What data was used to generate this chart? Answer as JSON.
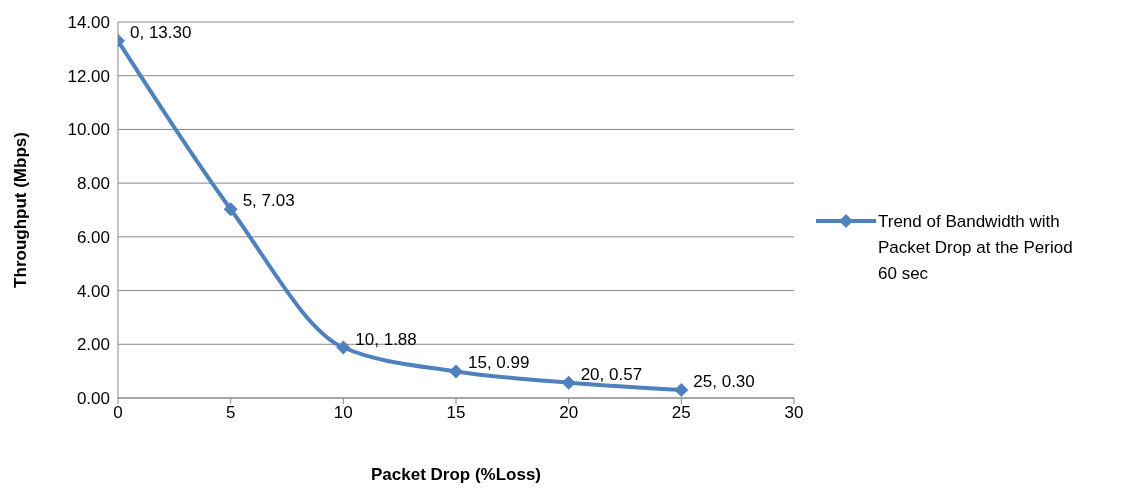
{
  "chart_data": {
    "type": "line",
    "xlabel": "Packet Drop (%Loss)",
    "ylabel": "Throughput (Mbps)",
    "x": [
      0,
      5,
      10,
      15,
      20,
      25
    ],
    "series": [
      {
        "name": "Trend of Bandwidth with Packet Drop at the Period 60 sec",
        "color": "#4f81bd",
        "values": [
          13.3,
          7.03,
          1.88,
          0.99,
          0.57,
          0.3
        ],
        "value_labels": [
          "0, 13.30",
          "5, 7.03",
          "10, 1.88",
          "15, 0.99",
          "20, 0.57",
          "25, 0.30"
        ]
      }
    ],
    "xlim": [
      0,
      30
    ],
    "xticks": [
      0,
      5,
      10,
      15,
      20,
      25,
      30
    ],
    "ylim": [
      0,
      14
    ],
    "yticks": [
      {
        "value": 0,
        "label": "0.00"
      },
      {
        "value": 2,
        "label": "2.00"
      },
      {
        "value": 4,
        "label": "4.00"
      },
      {
        "value": 6,
        "label": "6.00"
      },
      {
        "value": 8,
        "label": "8.00"
      },
      {
        "value": 10,
        "label": "10.00"
      },
      {
        "value": 12,
        "label": "12.00"
      },
      {
        "value": 14,
        "label": "14.00"
      }
    ],
    "grid": "y",
    "legend": "right",
    "marker": "diamond",
    "line_style": "solid"
  }
}
